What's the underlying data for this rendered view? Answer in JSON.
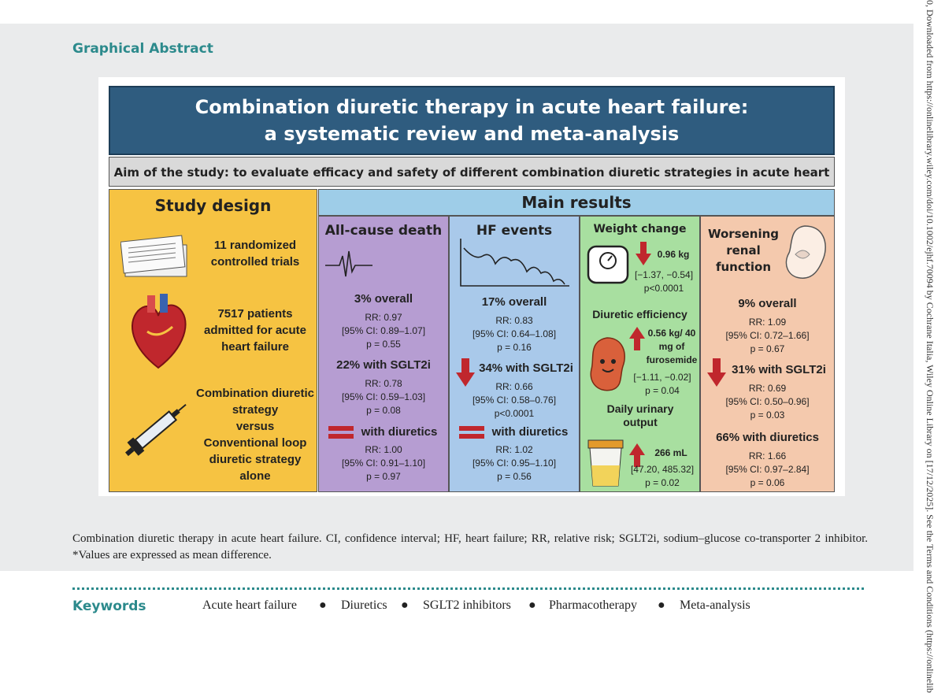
{
  "section_label": "Graphical Abstract",
  "title_line1": "Combination diuretic therapy in acute heart failure:",
  "title_line2": "a systematic review and meta-analysis",
  "aim": "Aim of the study: to evaluate efficacy and safety of different combination diuretic strategies in acute heart failure",
  "study_design": {
    "header": "Study design",
    "trials": "11 randomized controlled trials",
    "patients": "7517 patients admitted for acute heart failure",
    "strategy_a": "Combination diuretic strategy",
    "versus": "versus",
    "strategy_b": "Conventional loop diuretic strategy alone"
  },
  "main_results_header": "Main results",
  "death": {
    "header": "All-cause death",
    "overall": "3% overall",
    "overall_rr": "RR: 0.97",
    "overall_ci": "[95% CI: 0.89–1.07]",
    "overall_p": "p = 0.55",
    "sglt2": "22% with SGLT2i",
    "sglt2_rr": "RR: 0.78",
    "sglt2_ci": "[95% CI: 0.59–1.03]",
    "sglt2_p": "p = 0.08",
    "diur": "with diuretics",
    "diur_rr": "RR: 1.00",
    "diur_ci": "[95% CI: 0.91–1.10]",
    "diur_p": "p = 0.97"
  },
  "hf": {
    "header": "HF events",
    "overall": "17% overall",
    "overall_rr": "RR: 0.83",
    "overall_ci": "[95% CI: 0.64–1.08]",
    "overall_p": "p = 0.16",
    "sglt2": "34% with SGLT2i",
    "sglt2_rr": "RR: 0.66",
    "sglt2_ci": "[95% CI: 0.58–0.76]",
    "sglt2_p": "p<0.0001",
    "diur": "with diuretics",
    "diur_rr": "RR: 1.02",
    "diur_ci": "[95% CI: 0.95–1.10]",
    "diur_p": "p = 0.56"
  },
  "weight": {
    "header": "Weight change",
    "value": "0.96 kg",
    "ci": "[−1.37, −0.54]",
    "p": "p<0.0001",
    "eff_header": "Diuretic efficiency",
    "eff_value": "0.56 kg/ 40 mg of furosemide",
    "eff_ci": "[−1.11, −0.02]",
    "eff_p": "p = 0.04",
    "urine_header": "Daily urinary output",
    "urine_value": "266 mL",
    "urine_ci": "[47.20, 485.32]",
    "urine_p": "p = 0.02"
  },
  "renal": {
    "header": "Worsening renal function",
    "overall": "9% overall",
    "overall_rr": "RR: 1.09",
    "overall_ci": "[95% CI: 0.72–1.66]",
    "overall_p": "p = 0.67",
    "sglt2": "31% with SGLT2i",
    "sglt2_rr": "RR: 0.69",
    "sglt2_ci": "[95% CI: 0.50–0.96]",
    "sglt2_p": "p = 0.03",
    "diur": "66% with diuretics",
    "diur_rr": "RR: 1.66",
    "diur_ci": "[95% CI: 0.97–2.84]",
    "diur_p": "p = 0.06"
  },
  "caption": "Combination diuretic therapy in acute heart failure. CI, confidence interval; HF, heart failure; RR, relative risk; SGLT2i, sodium–glucose co-transporter 2 inhibitor. *Values are expressed as mean difference.",
  "keywords_label": "Keywords",
  "keywords": [
    "Acute heart failure",
    "Diuretics",
    "SGLT2 inhibitors",
    "Pharmacotherapy",
    "Meta-analysis"
  ],
  "side_note": "0, Downloaded from https://onlinelibrary.wiley.com/doi/10.1002/ejhf.70094 by Cochrane Italia, Wiley Online Library on [17/12/2025]. See the Terms and Conditions (https://onlinelib",
  "colors": {
    "accent": "#2c8a8c",
    "title_bg": "#2f5c7f",
    "arrow": "#c0272d"
  }
}
